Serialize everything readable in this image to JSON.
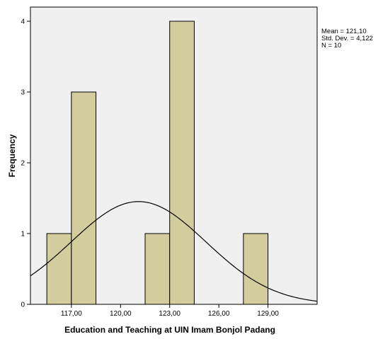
{
  "chart_data": {
    "type": "bar",
    "subtype": "histogram",
    "xlabel": "Education and Teaching at UIN Imam Bonjol Padang",
    "ylabel": "Frequency",
    "bins": [
      {
        "start": 115.5,
        "end": 117.0,
        "count": 1
      },
      {
        "start": 117.0,
        "end": 118.5,
        "count": 3
      },
      {
        "start": 121.5,
        "end": 123.0,
        "count": 1
      },
      {
        "start": 123.0,
        "end": 124.5,
        "count": 4
      },
      {
        "start": 127.5,
        "end": 129.0,
        "count": 1
      }
    ],
    "xticks": [
      117,
      120,
      123,
      126,
      129
    ],
    "xtick_labels": [
      "117,00",
      "120,00",
      "123,00",
      "126,00",
      "129,00"
    ],
    "yticks": [
      0,
      1,
      2,
      3,
      4
    ],
    "yticks_labels": [
      "0",
      "1",
      "2",
      "3",
      "4"
    ],
    "xlim": [
      114.5,
      132.0
    ],
    "ylim": [
      0,
      4.2
    ],
    "normal_curve": {
      "mean": 121.1,
      "std": 4.122,
      "n": 10,
      "bin_width": 1.5
    },
    "stats": {
      "mean": "Mean = 121,10",
      "std": "Std. Dev. = 4,122",
      "n": "N = 10"
    },
    "colors": {
      "bar_fill": "#d3cd9e",
      "bar_stroke": "#000000",
      "plot_background": "#f0f0f0",
      "curve": "#000000"
    }
  }
}
